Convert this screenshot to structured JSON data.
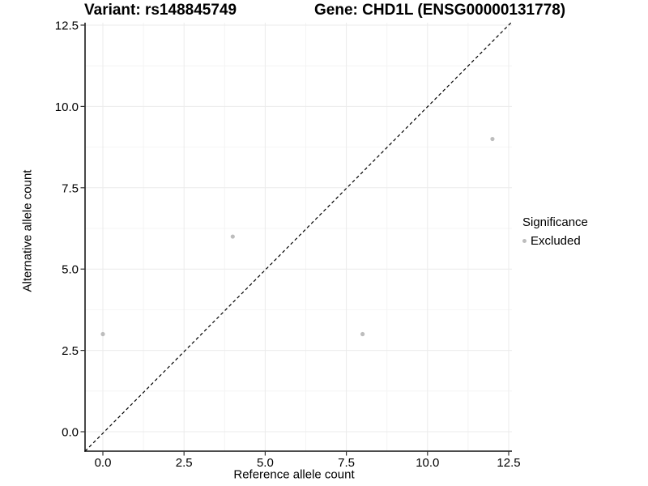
{
  "chart_data": {
    "type": "scatter",
    "title_left": "Variant: rs148845749",
    "title_right": "Gene: CHD1L (ENSG00000131778)",
    "xlabel": "Reference allele count",
    "ylabel": "Alternative allele count",
    "xlim": [
      -0.55,
      13.1
    ],
    "ylim": [
      -0.6,
      13.15
    ],
    "grid": true,
    "x_ticks": {
      "values": [
        0,
        2.5,
        5,
        7.5,
        10,
        12.5
      ],
      "labels": [
        "0.0",
        "2.5",
        "5.0",
        "7.5",
        "10.0",
        "12.5"
      ]
    },
    "y_ticks": {
      "values": [
        0,
        2.5,
        5,
        7.5,
        10,
        12.5
      ],
      "labels": [
        "0.0",
        "2.5",
        "5.0",
        "7.5",
        "10.0",
        "12.5"
      ]
    },
    "minor_ticks": [
      1.25,
      3.75,
      6.25,
      8.75,
      11.25
    ],
    "series": [
      {
        "name": "Excluded",
        "color": "#bdbdbd",
        "points": [
          {
            "x": 0,
            "y": 3
          },
          {
            "x": 4,
            "y": 6
          },
          {
            "x": 8,
            "y": 3
          },
          {
            "x": 12,
            "y": 9
          }
        ]
      }
    ],
    "reference_line": {
      "type": "abline",
      "slope": 1,
      "intercept": 0,
      "style": "dashed",
      "color": "#000000"
    },
    "legend": {
      "title": "Significance",
      "position": "right",
      "items": [
        {
          "label": "Excluded",
          "color": "#bdbdbd"
        }
      ]
    },
    "colors": {
      "background": "#ffffff",
      "grid_major": "#ebebeb",
      "grid_minor": "#f4f4f4",
      "axis_line": "#333333",
      "text": "#000000",
      "point": "#bdbdbd"
    }
  }
}
